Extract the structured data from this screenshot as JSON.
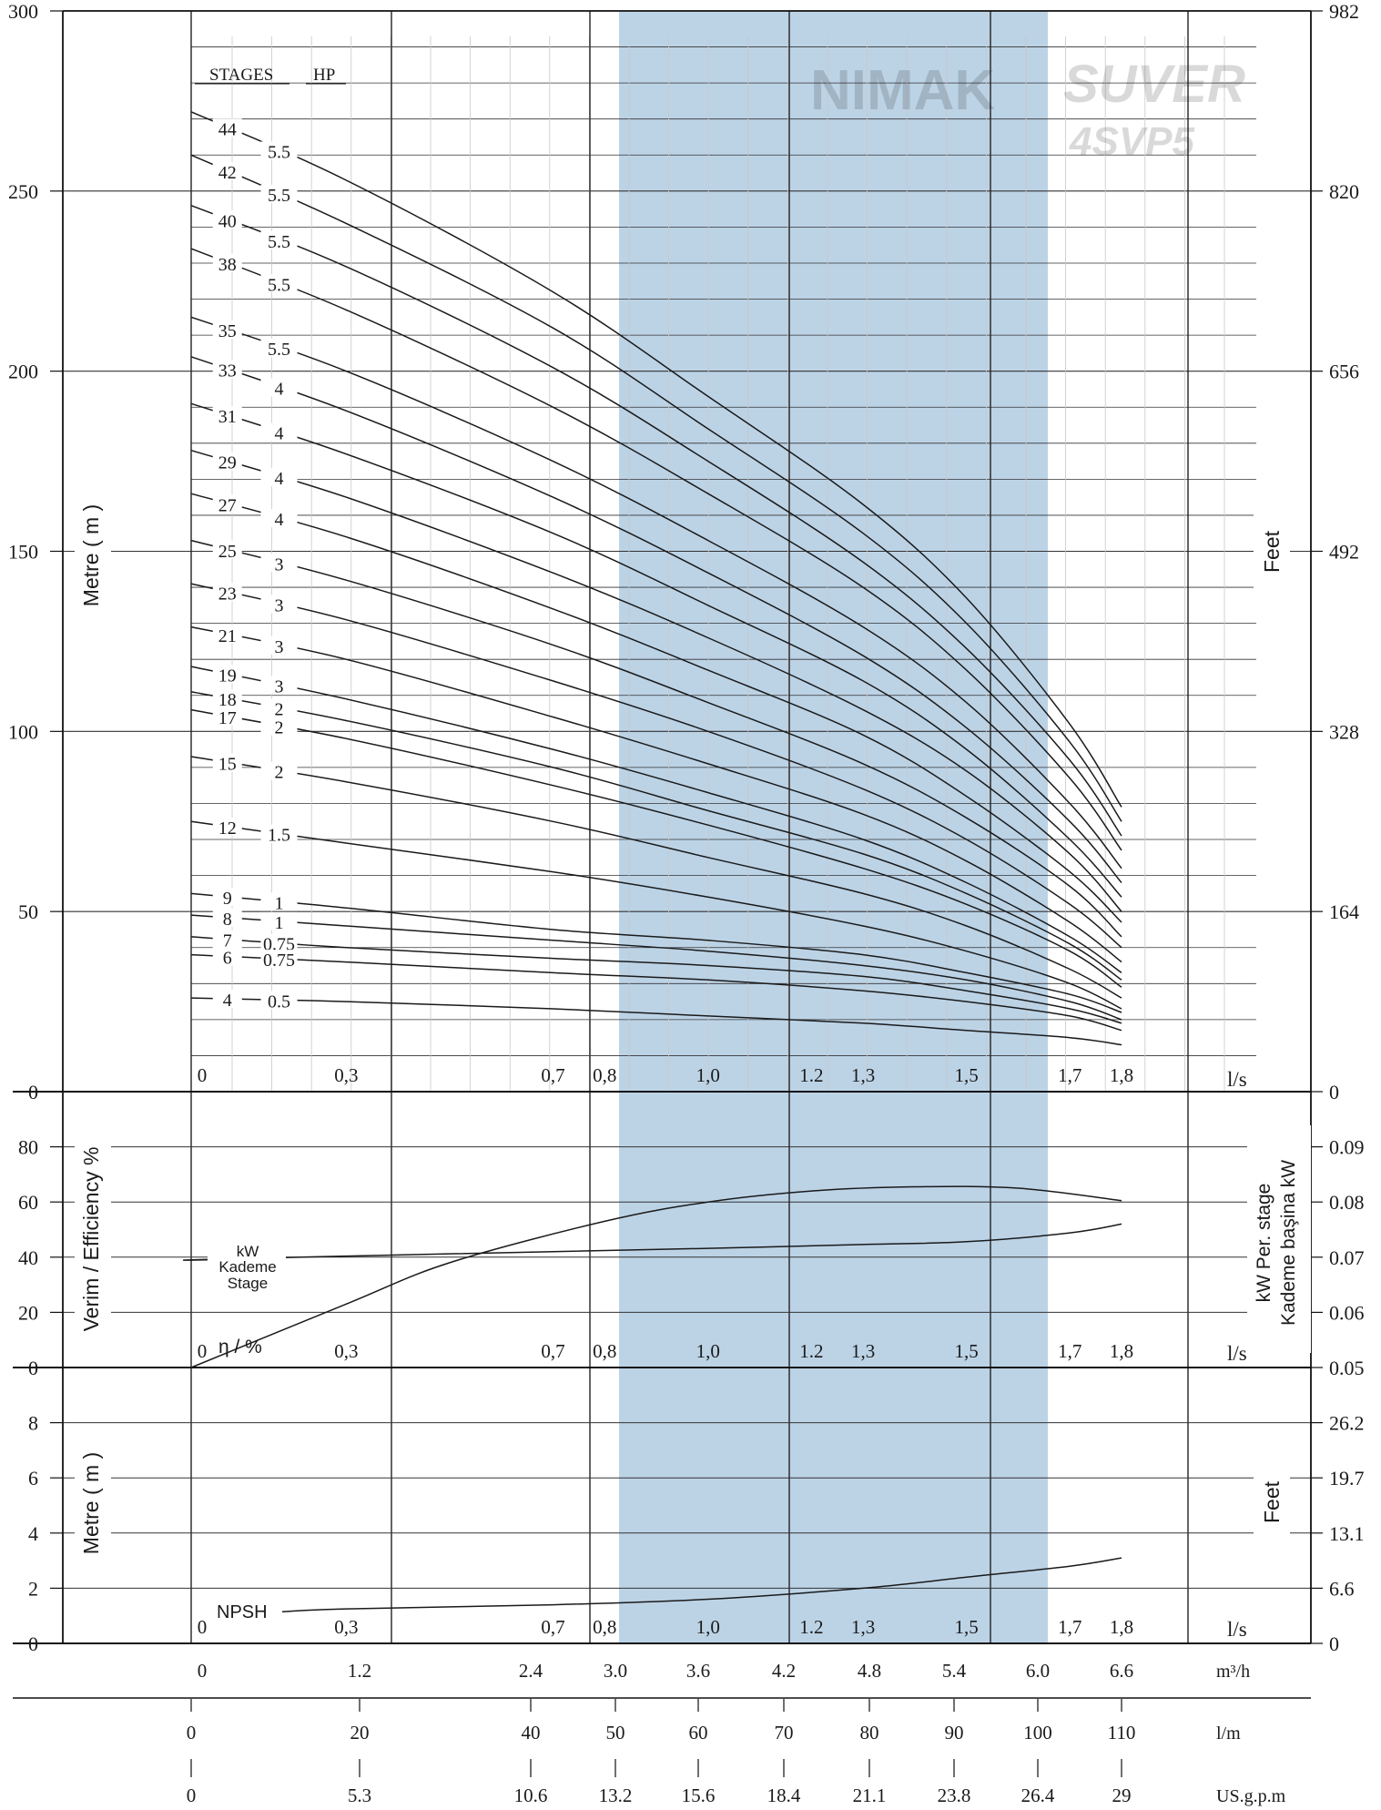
{
  "brand": {
    "logo_1": "NIMAK",
    "logo_2": "SUVER",
    "model": "4SVP5"
  },
  "colors": {
    "band": "#bcd3e6",
    "curve": "#1a1a1a",
    "grid": "#333333"
  },
  "axes": {
    "flow_ls_unit": "l/s",
    "flow_m3h_unit": "m³/h",
    "flow_lm_unit": "l/m",
    "flow_usgpm_unit": "US.g.p.m",
    "ls_ticks": [
      {
        "v": 0,
        "label": "0"
      },
      {
        "v": 0.3,
        "label": "0,3"
      },
      {
        "v": 0.7,
        "label": "0,7"
      },
      {
        "v": 0.8,
        "label": "0,8"
      },
      {
        "v": 1.0,
        "label": "1,0"
      },
      {
        "v": 1.2,
        "label": "1.2"
      },
      {
        "v": 1.3,
        "label": "1,3"
      },
      {
        "v": 1.5,
        "label": "1,5"
      },
      {
        "v": 1.7,
        "label": "1,7"
      },
      {
        "v": 1.8,
        "label": "1,8"
      }
    ],
    "m3h_ticks": [
      "0",
      "1.2",
      "2.4",
      "3.0",
      "3.6",
      "4.2",
      "4.8",
      "5.4",
      "6.0",
      "6.6"
    ],
    "lm_ticks": [
      "0",
      "20",
      "40",
      "50",
      "60",
      "70",
      "80",
      "90",
      "100",
      "110"
    ],
    "usgpm_ticks": [
      "0",
      "5.3",
      "10.6",
      "13.2",
      "15.6",
      "18.4",
      "21.1",
      "23.8",
      "26.4",
      "29"
    ]
  },
  "head_chart": {
    "ylabel": "Metre ( m )",
    "ylabel_right": "Feet",
    "ylim": [
      0,
      300
    ],
    "y_ticks": [
      "0",
      "50",
      "100",
      "150",
      "200",
      "250",
      "300"
    ],
    "y_ticks_right": [
      "0",
      "164",
      "328",
      "492",
      "656",
      "820",
      "982"
    ],
    "header_stages": "STAGES",
    "header_hp": "HP"
  },
  "efficiency_chart": {
    "ylabel": "Verim / Efficiency %",
    "ylabel_right_1": "kW Per. stage",
    "ylabel_right_2": "Kademe başina kW",
    "y_ticks": [
      "0",
      "20",
      "40",
      "60",
      "80"
    ],
    "y_ticks_right": [
      "0.05",
      "0.06",
      "0.07",
      "0.08",
      "0.09"
    ],
    "kw_label_1": "kW",
    "kw_label_2": "Kademe",
    "kw_label_3": "Stage",
    "eta_label": "η / %"
  },
  "npsh_chart": {
    "ylabel": "Metre ( m )",
    "ylabel_right": "Feet",
    "y_ticks": [
      "0",
      "2",
      "4",
      "6",
      "8"
    ],
    "y_ticks_right": [
      "0",
      "6.6",
      "13.1",
      "19.7",
      "26.2"
    ],
    "npsh_label": "NPSH"
  },
  "chart_data": {
    "type": "line",
    "x_unit": "l/s",
    "xlim": [
      0,
      1.8
    ],
    "recommended_range_ls": [
      0.8,
      1.7
    ],
    "head_series": [
      {
        "stages": "44",
        "hp": "5.5",
        "q": [
          0,
          0.3,
          0.7,
          1.0,
          1.3,
          1.5,
          1.7,
          1.8
        ],
        "h": [
          272,
          253,
          222,
          193,
          163,
          137,
          102,
          79
        ]
      },
      {
        "stages": "42",
        "hp": "5.5",
        "q": [
          0,
          0.3,
          0.7,
          1.0,
          1.3,
          1.5,
          1.7,
          1.8
        ],
        "h": [
          260,
          241,
          212,
          184,
          155,
          130,
          97,
          75
        ]
      },
      {
        "stages": "40",
        "hp": "5.5",
        "q": [
          0,
          0.3,
          0.7,
          1.0,
          1.3,
          1.5,
          1.7,
          1.8
        ],
        "h": [
          246,
          229,
          201,
          175,
          147,
          123,
          92,
          71
        ]
      },
      {
        "stages": "38",
        "hp": "5.5",
        "q": [
          0,
          0.3,
          0.7,
          1.0,
          1.3,
          1.5,
          1.7,
          1.8
        ],
        "h": [
          234,
          217,
          190,
          166,
          140,
          117,
          87,
          67
        ]
      },
      {
        "stages": "35",
        "hp": "5.5",
        "q": [
          0,
          0.3,
          0.7,
          1.0,
          1.3,
          1.5,
          1.7,
          1.8
        ],
        "h": [
          215,
          200,
          175,
          153,
          129,
          108,
          80,
          62
        ]
      },
      {
        "stages": "33",
        "hp": "4",
        "q": [
          0,
          0.3,
          0.7,
          1.0,
          1.3,
          1.5,
          1.7,
          1.8
        ],
        "h": [
          204,
          189,
          165,
          144,
          121,
          101,
          75,
          58
        ]
      },
      {
        "stages": "31",
        "hp": "4",
        "q": [
          0,
          0.3,
          0.7,
          1.0,
          1.3,
          1.5,
          1.7,
          1.8
        ],
        "h": [
          191,
          177,
          155,
          135,
          114,
          95,
          70,
          54
        ]
      },
      {
        "stages": "29",
        "hp": "4",
        "q": [
          0,
          0.3,
          0.7,
          1.0,
          1.3,
          1.5,
          1.7,
          1.8
        ],
        "h": [
          178,
          165,
          144,
          126,
          106,
          89,
          66,
          50
        ]
      },
      {
        "stages": "27",
        "hp": "4",
        "q": [
          0,
          0.3,
          0.7,
          1.0,
          1.3,
          1.5,
          1.7,
          1.8
        ],
        "h": [
          166,
          154,
          134,
          117,
          99,
          82,
          61,
          47
        ]
      },
      {
        "stages": "25",
        "hp": "3",
        "q": [
          0,
          0.3,
          0.7,
          1.0,
          1.3,
          1.5,
          1.7,
          1.8
        ],
        "h": [
          153,
          142,
          124,
          108,
          91,
          76,
          57,
          43
        ]
      },
      {
        "stages": "23",
        "hp": "3",
        "q": [
          0,
          0.3,
          0.7,
          1.0,
          1.3,
          1.5,
          1.7,
          1.8
        ],
        "h": [
          141,
          131,
          114,
          100,
          84,
          70,
          52,
          40
        ]
      },
      {
        "stages": "21",
        "hp": "3",
        "q": [
          0,
          0.3,
          0.7,
          1.0,
          1.3,
          1.5,
          1.7,
          1.8
        ],
        "h": [
          129,
          120,
          104,
          91,
          77,
          64,
          47,
          36
        ]
      },
      {
        "stages": "19",
        "hp": "3",
        "q": [
          0,
          0.3,
          0.7,
          1.0,
          1.3,
          1.5,
          1.7,
          1.8
        ],
        "h": [
          118,
          109,
          95,
          83,
          70,
          58,
          43,
          33
        ]
      },
      {
        "stages": "18",
        "hp": "2",
        "q": [
          0,
          0.3,
          0.7,
          1.0,
          1.3,
          1.5,
          1.7,
          1.8
        ],
        "h": [
          111,
          103,
          90,
          78,
          66,
          55,
          41,
          31
        ]
      },
      {
        "stages": "17",
        "hp": "2",
        "q": [
          0,
          0.3,
          0.7,
          1.0,
          1.3,
          1.5,
          1.7,
          1.8
        ],
        "h": [
          106,
          98,
          85,
          74,
          62,
          52,
          39,
          29
        ]
      },
      {
        "stages": "15",
        "hp": "2",
        "q": [
          0,
          0.3,
          0.7,
          1.0,
          1.3,
          1.5,
          1.7,
          1.8
        ],
        "h": [
          93,
          86,
          75,
          65,
          55,
          46,
          34,
          26
        ]
      },
      {
        "stages": "12",
        "hp": "1.5",
        "q": [
          0,
          0.3,
          0.7,
          1.0,
          1.3,
          1.5,
          1.7,
          1.8
        ],
        "h": [
          75,
          69,
          61,
          54,
          46,
          39,
          30,
          23
        ]
      },
      {
        "stages": "9",
        "hp": "1",
        "q": [
          0,
          0.3,
          0.7,
          1.0,
          1.3,
          1.5,
          1.7,
          1.8
        ],
        "h": [
          55,
          51,
          45,
          42,
          38,
          33,
          27,
          22
        ]
      },
      {
        "stages": "8",
        "hp": "1",
        "q": [
          0,
          0.3,
          0.7,
          1.0,
          1.3,
          1.5,
          1.7,
          1.8
        ],
        "h": [
          49,
          46,
          42,
          39,
          35,
          31,
          25,
          20
        ]
      },
      {
        "stages": "7",
        "hp": "0.75",
        "q": [
          0,
          0.3,
          0.7,
          1.0,
          1.3,
          1.5,
          1.7,
          1.8
        ],
        "h": [
          43,
          40,
          37,
          35,
          32,
          28,
          23,
          19
        ]
      },
      {
        "stages": "6",
        "hp": "0.75",
        "q": [
          0,
          0.3,
          0.7,
          1.0,
          1.3,
          1.5,
          1.7,
          1.8
        ],
        "h": [
          38,
          36,
          33,
          31,
          28,
          25,
          21,
          17
        ]
      },
      {
        "stages": "4",
        "hp": "0.5",
        "q": [
          0,
          0.3,
          0.7,
          1.0,
          1.3,
          1.5,
          1.7,
          1.8
        ],
        "h": [
          26,
          25,
          23,
          21,
          19,
          17,
          15,
          13
        ]
      }
    ],
    "efficiency_percent": {
      "q": [
        0,
        0.3,
        0.5,
        0.8,
        1.0,
        1.2,
        1.4,
        1.6,
        1.8
      ],
      "v": [
        0,
        23,
        38,
        53,
        60,
        64,
        65.5,
        65,
        60.5
      ]
    },
    "kw_per_stage": {
      "q": [
        0,
        0.3,
        0.7,
        1.0,
        1.3,
        1.5,
        1.7,
        1.8
      ],
      "v": [
        0.0695,
        0.0702,
        0.071,
        0.0716,
        0.0723,
        0.0728,
        0.0744,
        0.076
      ]
    },
    "npsh_m": {
      "q": [
        0,
        0.3,
        0.7,
        1.0,
        1.3,
        1.5,
        1.7,
        1.8
      ],
      "v": [
        1.15,
        1.25,
        1.4,
        1.6,
        2.0,
        2.4,
        2.8,
        3.1
      ]
    }
  }
}
